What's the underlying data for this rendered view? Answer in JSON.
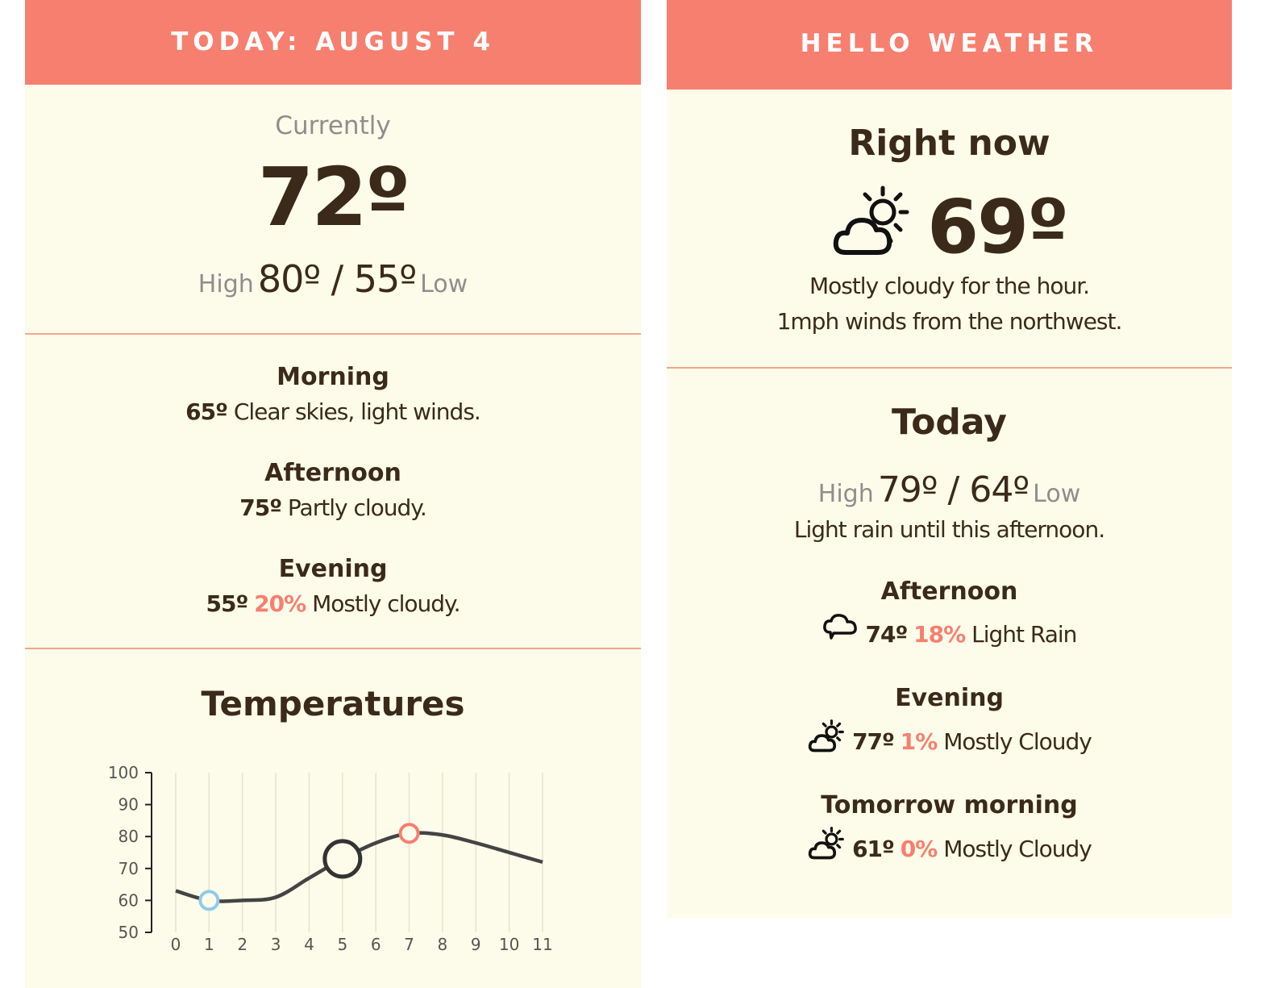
{
  "left": {
    "header": "TODAY: AUGUST 4",
    "current": {
      "label": "Currently",
      "temp": "72º",
      "high_label": "High",
      "range": "80º / 55º",
      "low_label": "Low"
    },
    "periods": [
      {
        "name": "Morning",
        "temp": "65º",
        "chance": "",
        "desc": "Clear skies, light winds."
      },
      {
        "name": "Afternoon",
        "temp": "75º",
        "chance": "",
        "desc": "Partly cloudy."
      },
      {
        "name": "Evening",
        "temp": "55º",
        "chance": "20%",
        "desc": "Mostly cloudy."
      }
    ]
  },
  "right": {
    "header": "HELLO WEATHER",
    "now": {
      "title": "Right now",
      "icon": "partly-cloudy-icon",
      "temp": "69º",
      "line1": "Mostly cloudy for the hour.",
      "line2": "1mph winds from the northwest."
    },
    "today": {
      "title": "Today",
      "high_label": "High",
      "range": "79º / 64º",
      "low_label": "Low",
      "summary": "Light rain until this afternoon."
    },
    "forecast": [
      {
        "name": "Afternoon",
        "icon": "rain-cloud-icon",
        "temp": "74º",
        "chance": "18%",
        "desc": "Light Rain"
      },
      {
        "name": "Evening",
        "icon": "partly-cloudy-icon",
        "temp": "77º",
        "chance": "1%",
        "desc": "Mostly Cloudy"
      },
      {
        "name": "Tomorrow morning",
        "icon": "partly-cloudy-icon",
        "temp": "61º",
        "chance": "0%",
        "desc": "Mostly Cloudy"
      }
    ]
  },
  "colors": {
    "accent": "#f77f6f",
    "background": "#fdfcea",
    "text": "#3b2a1a",
    "low_marker": "#8ecbe8",
    "high_marker": "#f77f6f"
  },
  "chart_data": {
    "type": "line",
    "title": "Temperatures",
    "x": [
      0,
      1,
      2,
      3,
      4,
      5,
      6,
      7,
      8,
      9,
      10,
      11
    ],
    "series": [
      {
        "values": [
          63,
          60,
          60,
          61,
          67,
          73,
          78,
          81,
          80.5,
          78,
          75,
          72
        ]
      }
    ],
    "xticks": [
      "0",
      "1",
      "2",
      "3",
      "4",
      "5",
      "6",
      "7",
      "8",
      "9",
      "10",
      "11"
    ],
    "yticks": [
      "50",
      "60",
      "70",
      "80",
      "90",
      "100"
    ],
    "ylim": [
      50,
      100
    ],
    "xlim": [
      0,
      11
    ],
    "markers": [
      {
        "x": 1,
        "y": 60,
        "kind": "low"
      },
      {
        "x": 5,
        "y": 73,
        "kind": "current"
      },
      {
        "x": 7,
        "y": 81,
        "kind": "high"
      }
    ],
    "grid": "vertical"
  }
}
